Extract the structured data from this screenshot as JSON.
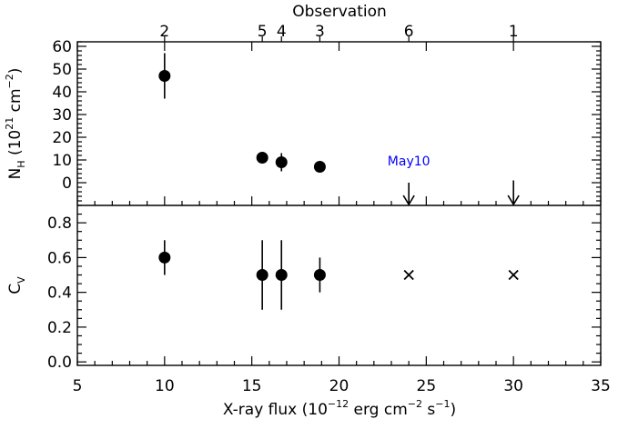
{
  "chart_data": {
    "type": "scatter",
    "x": [
      10,
      15.6,
      16.7,
      18.9,
      24,
      30
    ],
    "observations": [
      "2",
      "5",
      "4",
      "3",
      "6",
      "1"
    ],
    "top_axis_title": "Observation",
    "xlabel_parts": {
      "pre": "X-ray flux (10",
      "sup1": "−12",
      "mid": " erg cm",
      "sup2": "−2",
      "mid2": " s",
      "sup3": "−1",
      "post": ")"
    },
    "xlim": [
      5,
      35
    ],
    "xticks": [
      "5",
      "10",
      "15",
      "20",
      "25",
      "30",
      "35"
    ],
    "panels": [
      {
        "name": "NH",
        "ylabel_parts": {
          "n": "N",
          "nsub": "H",
          "pre": " (10",
          "sup1": "21",
          "mid": " cm",
          "sup2": "−2",
          "post": ")"
        },
        "ylim": [
          -10,
          62
        ],
        "yticks": [
          "0",
          "10",
          "20",
          "30",
          "40",
          "50",
          "60"
        ],
        "points": [
          {
            "x": 10,
            "y": 47,
            "err_low": 37,
            "err_high": 57
          },
          {
            "x": 15.6,
            "y": 11,
            "err_low": 9.5,
            "err_high": 12.5
          },
          {
            "x": 16.7,
            "y": 9,
            "err_low": 5,
            "err_high": 13
          },
          {
            "x": 18.9,
            "y": 7,
            "err_low": 5,
            "err_high": 9
          }
        ],
        "upper_limits": [
          {
            "x": 24,
            "y": 0
          },
          {
            "x": 30,
            "y": 1
          }
        ],
        "annotation": {
          "text": "May10",
          "x": 24,
          "y": 6,
          "color": "#0000ff"
        }
      },
      {
        "name": "Cv",
        "ylabel_parts": {
          "c": "C",
          "csub": "V"
        },
        "ylim": [
          -0.02,
          0.9
        ],
        "yticks": [
          "0.0",
          "0.2",
          "0.4",
          "0.6",
          "0.8"
        ],
        "points": [
          {
            "x": 10,
            "y": 0.6,
            "err_low": 0.5,
            "err_high": 0.7
          },
          {
            "x": 15.6,
            "y": 0.5,
            "err_low": 0.3,
            "err_high": 0.7
          },
          {
            "x": 16.7,
            "y": 0.5,
            "err_low": 0.3,
            "err_high": 0.7
          },
          {
            "x": 18.9,
            "y": 0.5,
            "err_low": 0.4,
            "err_high": 0.6
          }
        ],
        "fixed_points": [
          {
            "x": 24,
            "y": 0.5
          },
          {
            "x": 30,
            "y": 0.5
          }
        ]
      }
    ],
    "grid": false,
    "legend": "none"
  }
}
